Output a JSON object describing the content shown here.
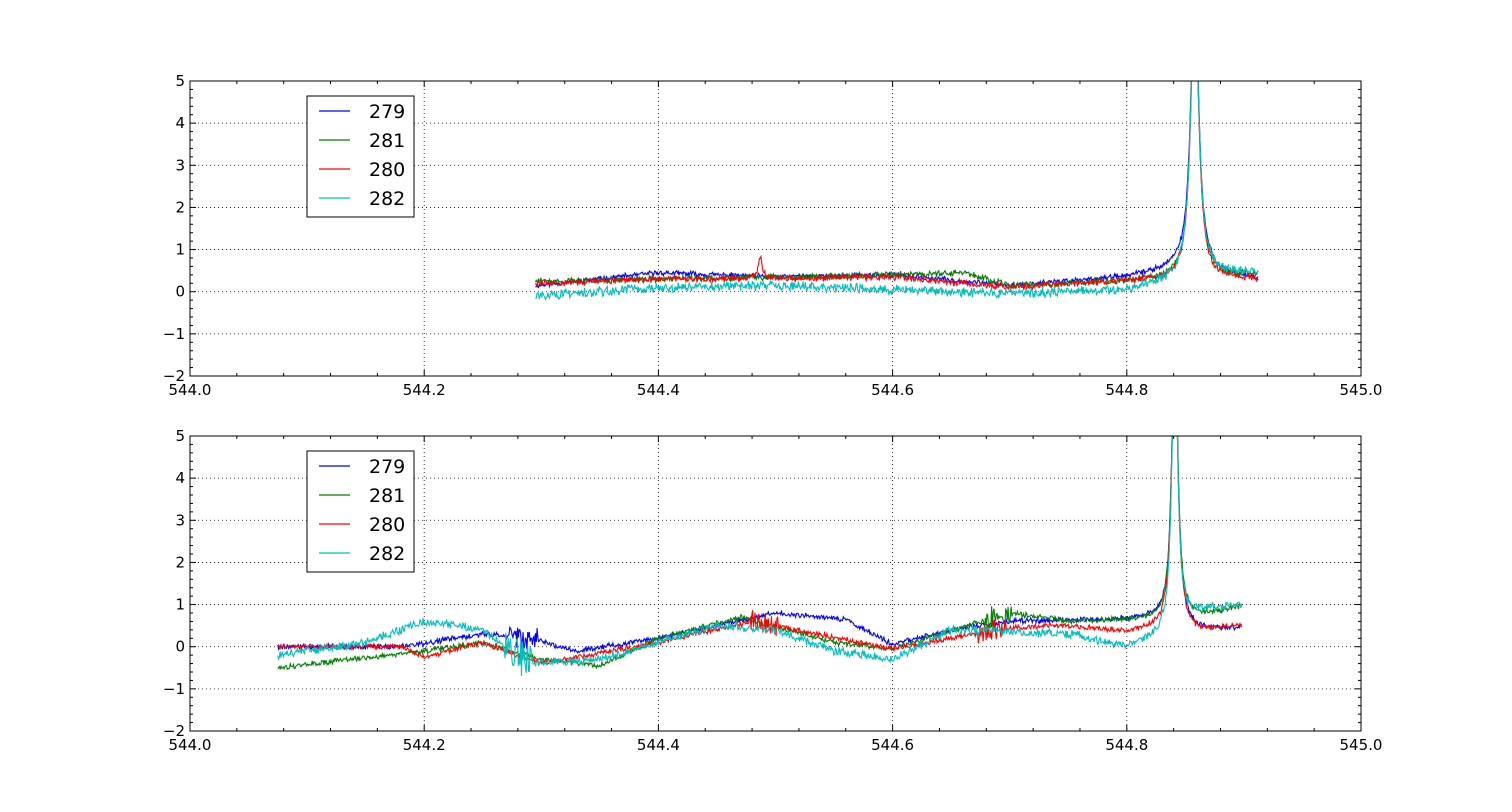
{
  "chart_data": [
    {
      "type": "line",
      "title": "",
      "xlabel": "",
      "ylabel": "",
      "xlim": [
        544.0,
        545.0
      ],
      "ylim": [
        -2,
        5
      ],
      "x_ticks": [
        "544.0",
        "544.2",
        "544.4",
        "544.6",
        "544.8",
        "545.0"
      ],
      "y_ticks": [
        "5",
        "4",
        "3",
        "2",
        "1",
        "0",
        "−1",
        "−2"
      ],
      "grid": true,
      "legend_position": "upper-left",
      "series": [
        {
          "name": "279",
          "color": "#0000ff",
          "x_range": [
            544.295,
            544.912
          ],
          "base": [
            [
              544.295,
              0.15
            ],
            [
              544.4,
              0.45
            ],
            [
              544.5,
              0.35
            ],
            [
              544.6,
              0.4
            ],
            [
              544.7,
              0.15
            ],
            [
              544.8,
              0.35
            ],
            [
              544.845,
              0.55
            ],
            [
              544.912,
              0.3
            ]
          ],
          "noise": 0.05,
          "peaks": [
            [
              544.858,
              7.0,
              0.004
            ]
          ]
        },
        {
          "name": "281",
          "color": "#008000",
          "x_range": [
            544.295,
            544.912
          ],
          "base": [
            [
              544.295,
              0.25
            ],
            [
              544.4,
              0.3
            ],
            [
              544.5,
              0.35
            ],
            [
              544.6,
              0.4
            ],
            [
              544.66,
              0.45
            ],
            [
              544.7,
              0.15
            ],
            [
              544.8,
              0.25
            ],
            [
              544.912,
              0.4
            ]
          ],
          "noise": 0.06,
          "peaks": [
            [
              544.858,
              7.0,
              0.004
            ]
          ]
        },
        {
          "name": "280",
          "color": "#ff0000",
          "x_range": [
            544.295,
            544.912
          ],
          "base": [
            [
              544.295,
              0.2
            ],
            [
              544.4,
              0.3
            ],
            [
              544.5,
              0.3
            ],
            [
              544.6,
              0.35
            ],
            [
              544.7,
              0.1
            ],
            [
              544.8,
              0.25
            ],
            [
              544.912,
              0.3
            ]
          ],
          "noise": 0.06,
          "peaks": [
            [
              544.858,
              7.0,
              0.004
            ],
            [
              544.487,
              0.55,
              0.002
            ]
          ]
        },
        {
          "name": "282",
          "color": "#00bfbf",
          "x_range": [
            544.295,
            544.912
          ],
          "base": [
            [
              544.295,
              -0.1
            ],
            [
              544.4,
              0.1
            ],
            [
              544.5,
              0.15
            ],
            [
              544.6,
              0.05
            ],
            [
              544.7,
              -0.05
            ],
            [
              544.8,
              0.05
            ],
            [
              544.87,
              0.4
            ],
            [
              544.912,
              0.45
            ]
          ],
          "noise": 0.09,
          "peaks": [
            [
              544.858,
              7.0,
              0.004
            ]
          ]
        }
      ]
    },
    {
      "type": "line",
      "title": "",
      "xlabel": "",
      "ylabel": "",
      "xlim": [
        544.0,
        545.0
      ],
      "ylim": [
        -2,
        5
      ],
      "x_ticks": [
        "544.0",
        "544.2",
        "544.4",
        "544.6",
        "544.8",
        "545.0"
      ],
      "y_ticks": [
        "5",
        "4",
        "3",
        "2",
        "1",
        "0",
        "−1",
        "−2"
      ],
      "grid": true,
      "legend_position": "upper-left",
      "series": [
        {
          "name": "279",
          "color": "#0000ff",
          "x_range": [
            544.075,
            544.898
          ],
          "base": [
            [
              544.075,
              0.0
            ],
            [
              544.18,
              0.0
            ],
            [
              544.25,
              0.3
            ],
            [
              544.29,
              0.2
            ],
            [
              544.33,
              -0.1
            ],
            [
              544.4,
              0.2
            ],
            [
              544.5,
              0.8
            ],
            [
              544.56,
              0.65
            ],
            [
              544.6,
              0.05
            ],
            [
              544.65,
              0.4
            ],
            [
              544.7,
              0.6
            ],
            [
              544.8,
              0.65
            ],
            [
              544.83,
              0.7
            ],
            [
              544.86,
              0.4
            ],
            [
              544.898,
              0.45
            ]
          ],
          "noise": 0.05,
          "peaks": [
            [
              544.841,
              7.0,
              0.003
            ]
          ],
          "bursts": [
            [
              544.285,
              0.3
            ]
          ]
        },
        {
          "name": "281",
          "color": "#008000",
          "x_range": [
            544.075,
            544.898
          ],
          "base": [
            [
              544.075,
              -0.5
            ],
            [
              544.2,
              -0.1
            ],
            [
              544.25,
              0.1
            ],
            [
              544.3,
              -0.3
            ],
            [
              544.35,
              -0.45
            ],
            [
              544.4,
              0.2
            ],
            [
              544.47,
              0.7
            ],
            [
              544.55,
              0.1
            ],
            [
              544.6,
              -0.05
            ],
            [
              544.7,
              0.8
            ],
            [
              544.75,
              0.6
            ],
            [
              544.83,
              0.65
            ],
            [
              544.86,
              0.7
            ],
            [
              544.898,
              0.95
            ]
          ],
          "noise": 0.05,
          "peaks": [
            [
              544.841,
              7.0,
              0.003
            ]
          ],
          "bursts": [
            [
              544.69,
              0.25
            ]
          ]
        },
        {
          "name": "280",
          "color": "#ff0000",
          "x_range": [
            544.075,
            544.898
          ],
          "base": [
            [
              544.075,
              0.0
            ],
            [
              544.18,
              0.0
            ],
            [
              544.2,
              -0.25
            ],
            [
              544.25,
              0.1
            ],
            [
              544.3,
              -0.4
            ],
            [
              544.4,
              0.1
            ],
            [
              544.48,
              0.6
            ],
            [
              544.6,
              -0.05
            ],
            [
              544.7,
              0.45
            ],
            [
              544.75,
              0.5
            ],
            [
              544.8,
              0.35
            ],
            [
              544.84,
              0.5
            ],
            [
              544.86,
              0.35
            ],
            [
              544.898,
              0.5
            ]
          ],
          "noise": 0.05,
          "peaks": [
            [
              544.841,
              7.0,
              0.003
            ]
          ],
          "bursts": [
            [
              544.49,
              0.3
            ],
            [
              544.685,
              0.25
            ]
          ]
        },
        {
          "name": "282",
          "color": "#00bfbf",
          "x_range": [
            544.075,
            544.898
          ],
          "base": [
            [
              544.075,
              -0.2
            ],
            [
              544.15,
              0.1
            ],
            [
              544.2,
              0.6
            ],
            [
              544.25,
              0.4
            ],
            [
              544.29,
              -0.4
            ],
            [
              544.35,
              -0.3
            ],
            [
              544.45,
              0.5
            ],
            [
              544.5,
              0.4
            ],
            [
              544.55,
              -0.1
            ],
            [
              544.6,
              -0.3
            ],
            [
              544.65,
              0.4
            ],
            [
              544.75,
              0.3
            ],
            [
              544.8,
              0.0
            ],
            [
              544.84,
              0.3
            ],
            [
              544.86,
              0.8
            ],
            [
              544.898,
              1.0
            ]
          ],
          "noise": 0.08,
          "peaks": [
            [
              544.841,
              7.0,
              0.003
            ]
          ],
          "bursts": [
            [
              544.28,
              0.35
            ]
          ]
        }
      ]
    }
  ]
}
